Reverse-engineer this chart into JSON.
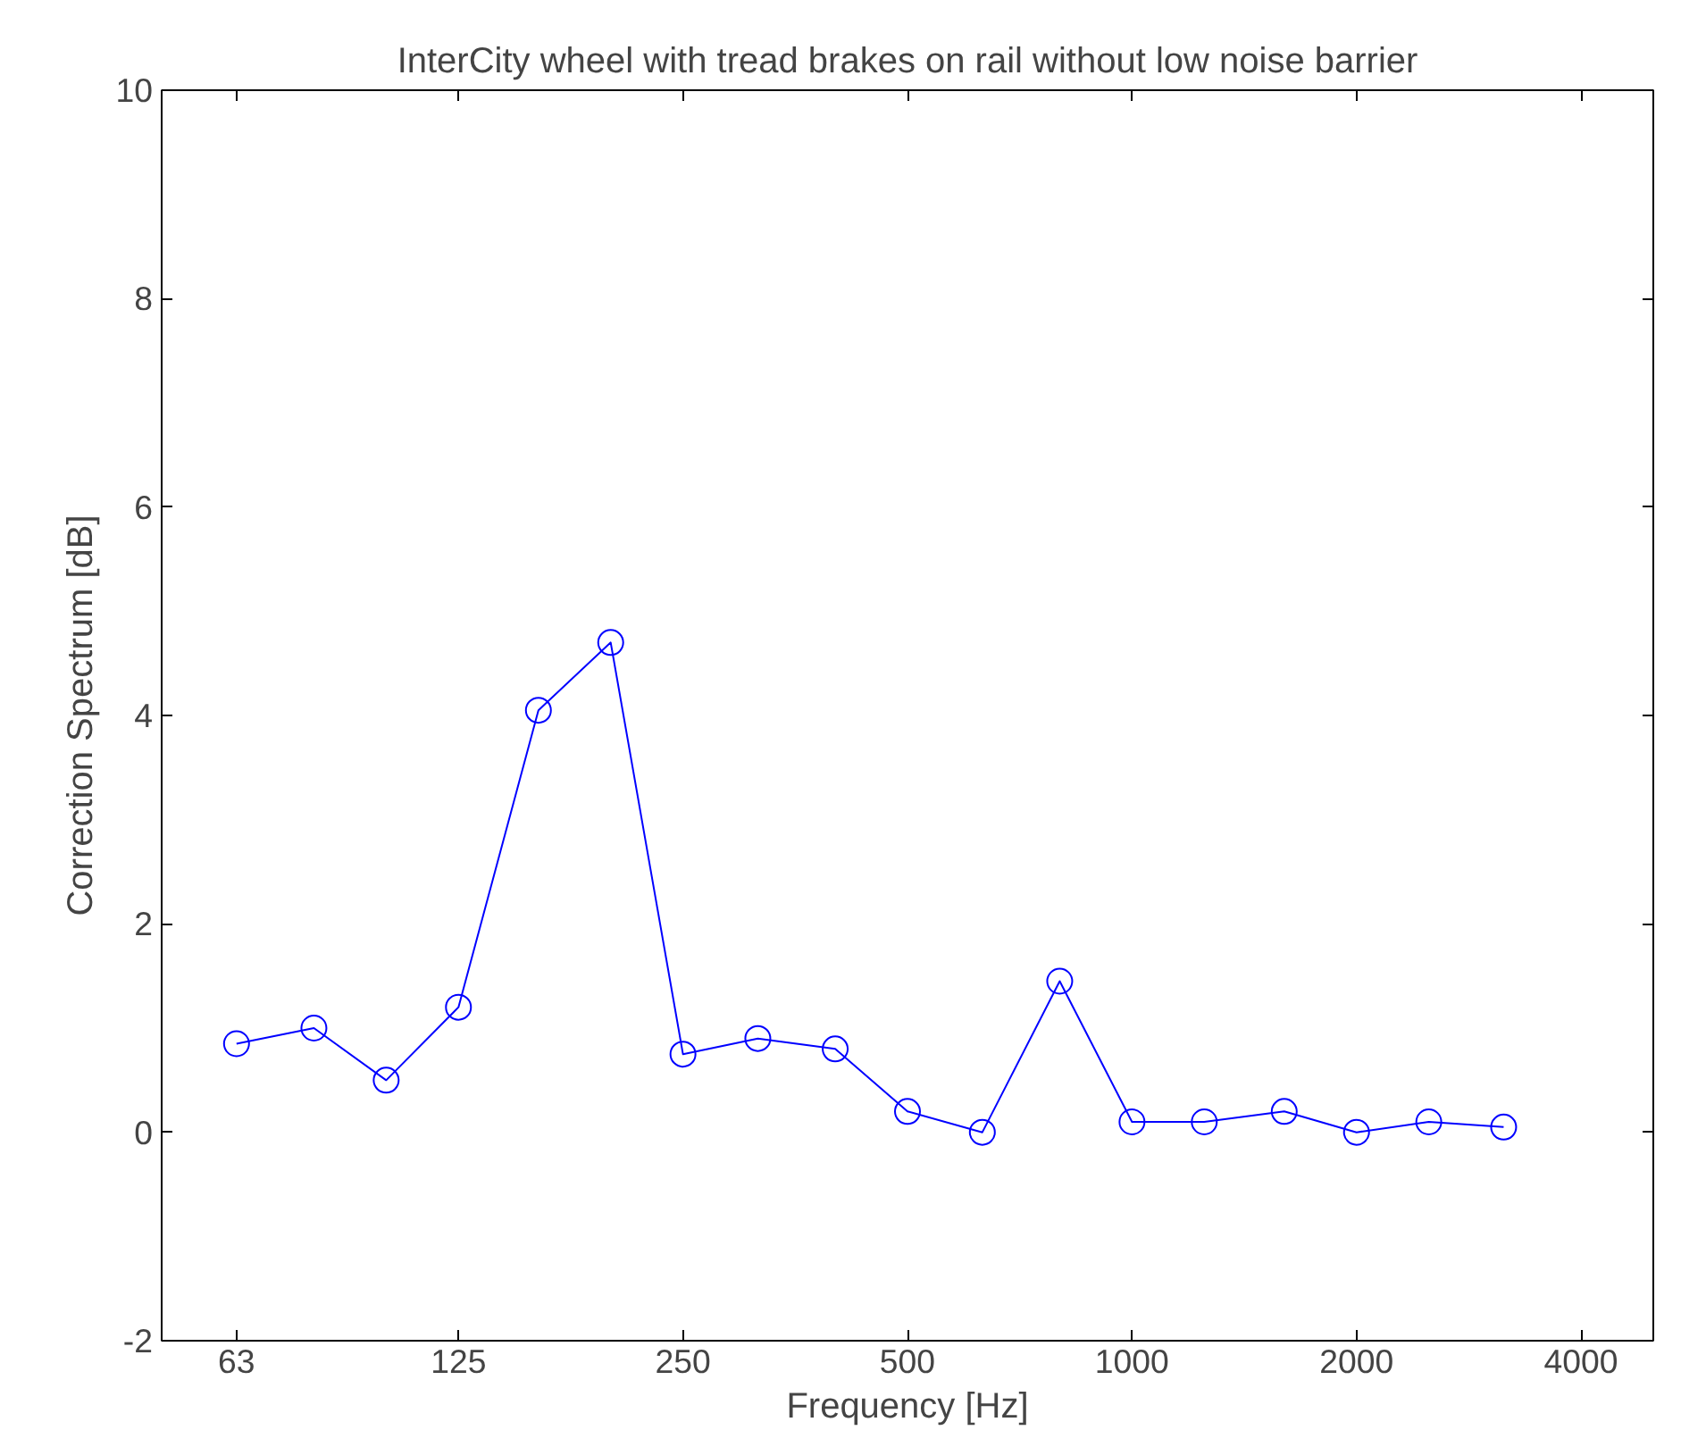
{
  "chart_data": {
    "type": "line",
    "title": "InterCity wheel with tread brakes on rail without low noise barrier",
    "xlabel": "Frequency [Hz]",
    "ylabel": "Correction Spectrum [dB]",
    "x": [
      63,
      80,
      100,
      125,
      160,
      200,
      250,
      315,
      400,
      500,
      630,
      800,
      1000,
      1250,
      1600,
      2000,
      2500,
      3150
    ],
    "series": [
      {
        "color": "#0000ff",
        "values": [
          0.85,
          1.0,
          0.5,
          1.2,
          4.05,
          4.7,
          0.75,
          0.9,
          0.8,
          0.2,
          0.0,
          1.45,
          0.1,
          0.1,
          0.2,
          0.0,
          0.1,
          0.05
        ]
      }
    ],
    "log": "x",
    "xlim": [
      50,
      5000
    ],
    "xticks": [
      63,
      125,
      250,
      500,
      1000,
      2000,
      4000
    ],
    "ylim": [
      -2,
      10
    ],
    "yticks": [
      -2,
      0,
      2,
      4,
      6,
      8,
      10
    ],
    "grid": false,
    "marker": "circle",
    "line_style": "solid"
  }
}
